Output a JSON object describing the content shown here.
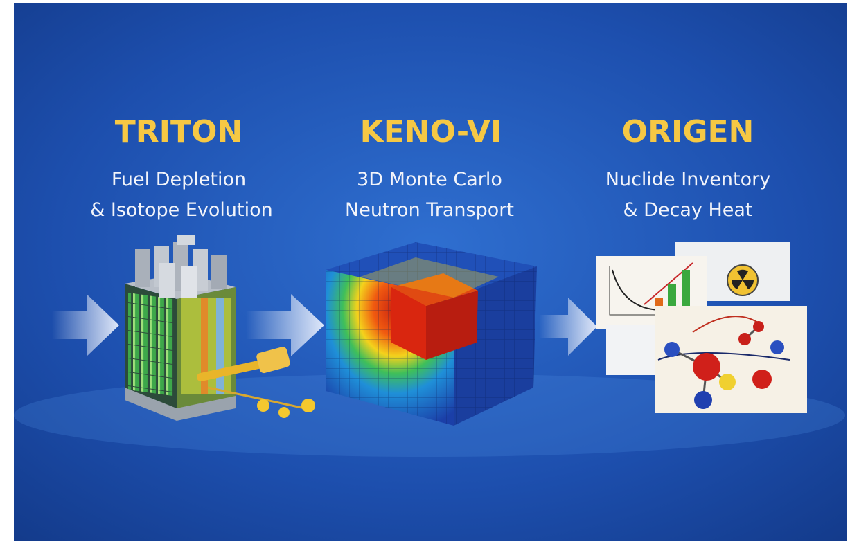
{
  "panels": [
    {
      "title": "TRITON",
      "subtitle": [
        "Fuel Depletion",
        "& Isotope Evolution"
      ]
    },
    {
      "title": "KENO-VI",
      "subtitle": [
        "3D Monte Carlo",
        "Neutron Transport"
      ]
    },
    {
      "title": "ORIGEN",
      "subtitle": [
        "Nuclide Inventory",
        "& Decay Heat"
      ]
    }
  ]
}
